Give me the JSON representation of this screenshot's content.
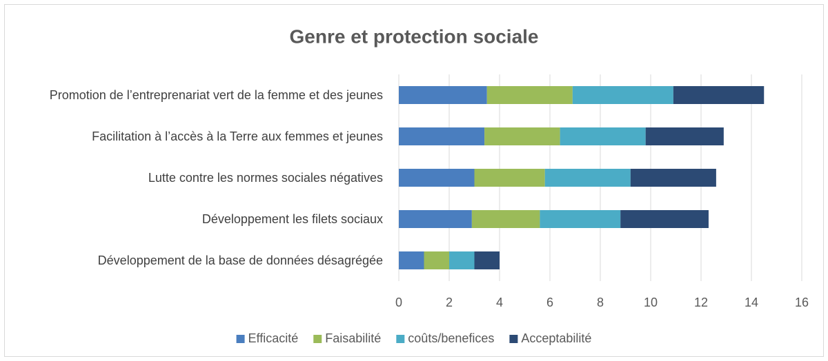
{
  "chart_data": {
    "type": "bar",
    "orientation": "horizontal",
    "stacked": true,
    "title": "Genre et protection sociale",
    "categories": [
      "Promotion de l’entreprenariat vert de la femme et des jeunes",
      "Facilitation à l’accès à la Terre aux femmes et jeunes",
      "Lutte contre les normes sociales négatives",
      "Développement les filets sociaux",
      "Développement de la base de données désagrégée"
    ],
    "series": [
      {
        "name": "Efficacité",
        "color": "#4a7ebf",
        "values": [
          3.5,
          3.4,
          3.0,
          2.9,
          1
        ]
      },
      {
        "name": "Faisabilité",
        "color": "#9bbb59",
        "values": [
          3.4,
          3.0,
          2.8,
          2.7,
          1
        ]
      },
      {
        "name": "coûts/benefices",
        "color": "#4bacc6",
        "values": [
          4.0,
          3.4,
          3.4,
          3.2,
          1
        ]
      },
      {
        "name": "Acceptabilité",
        "color": "#2c4a74",
        "values": [
          3.6,
          3.1,
          3.4,
          3.5,
          1
        ]
      }
    ],
    "xlim": [
      0,
      16
    ],
    "xticks": [
      0,
      2,
      4,
      6,
      8,
      10,
      12,
      14,
      16
    ],
    "grid": true,
    "legend": "bottom"
  }
}
